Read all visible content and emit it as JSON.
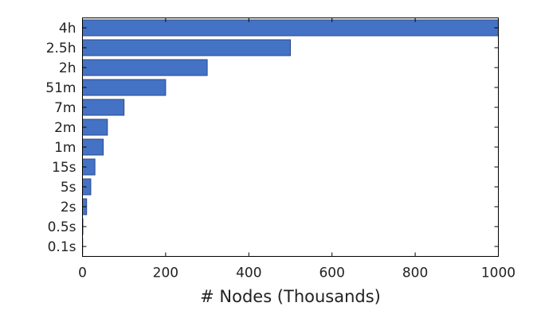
{
  "chart_data": {
    "type": "bar",
    "orientation": "horizontal",
    "categories": [
      "4h",
      "2.5h",
      "2h",
      "51m",
      "7m",
      "2m",
      "1m",
      "15s",
      "5s",
      "2s",
      "0.5s",
      "0.1s"
    ],
    "values": [
      1000,
      500,
      300,
      200,
      100,
      60,
      50,
      30,
      20,
      10,
      1,
      0.5
    ],
    "xlabel": "# Nodes (Thousands)",
    "ylabel": "",
    "xlim": [
      0,
      1000
    ],
    "xticks": [
      "0",
      "200",
      "400",
      "600",
      "800",
      "1000"
    ],
    "xtick_values": [
      0,
      200,
      400,
      600,
      800,
      1000
    ],
    "bar_color": "#4472c4",
    "grid": false
  }
}
